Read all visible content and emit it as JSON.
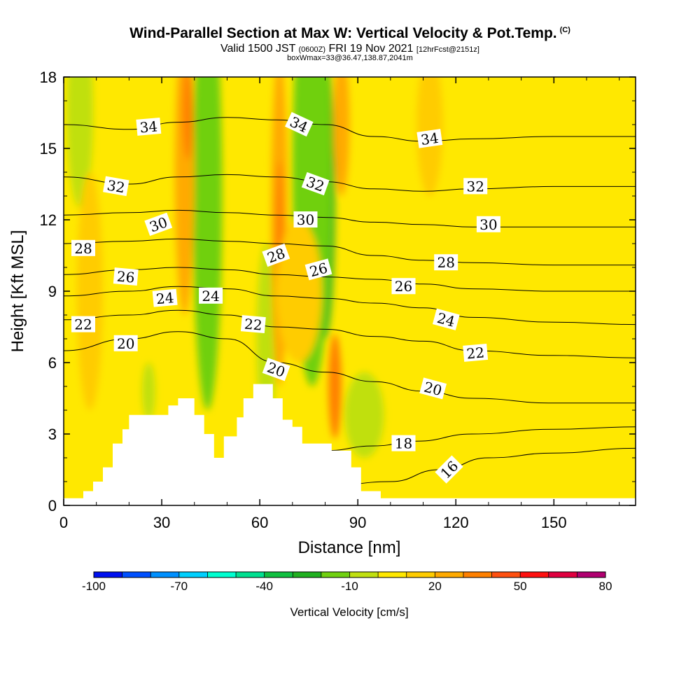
{
  "header": {
    "title": "Wind-Parallel Section at Max W: Vertical Velocity & Pot.Temp.",
    "copyright": "(C)",
    "valid_prefix": "Valid 1500 JST",
    "valid_utc": "(0600Z)",
    "valid_date": "FRI 19 Nov 2021",
    "forecast": "[12hrFcst@2151z]",
    "box_info": "boxWmax=33@36.47,138.87,2041m"
  },
  "chart_data": {
    "type": "heatmap",
    "xlabel": "Distance [nm]",
    "ylabel": "Height [Kft MSL]",
    "xlim": [
      0,
      175
    ],
    "ylim": [
      0,
      18
    ],
    "xticks": [
      0,
      30,
      60,
      90,
      120,
      150
    ],
    "yticks": [
      0,
      3,
      6,
      9,
      12,
      15,
      18
    ],
    "colorbar": {
      "title": "Vertical Velocity [cm/s]",
      "levels": [
        -100,
        -90,
        -80,
        -70,
        -60,
        -50,
        -40,
        -30,
        -20,
        -10,
        0,
        10,
        20,
        30,
        40,
        50,
        60,
        70,
        80
      ],
      "labels": [
        -100,
        -70,
        -40,
        -10,
        20,
        50,
        80
      ],
      "colors": [
        "#0010f0",
        "#0050ff",
        "#0090ff",
        "#00d0ff",
        "#00ffd0",
        "#00e090",
        "#10c040",
        "#20b020",
        "#70d010",
        "#c0e010",
        "#ffe800",
        "#ffcc00",
        "#ffaa00",
        "#ff8000",
        "#ff5010",
        "#ff1010",
        "#e00040",
        "#b00070",
        "#800080",
        "#5a0090"
      ]
    },
    "background_color": "#ffe800",
    "theta_contours": [
      {
        "label": "16",
        "points": [
          [
            80,
            0.8
          ],
          [
            100,
            1.0
          ],
          [
            115,
            1.5
          ],
          [
            130,
            2.0
          ],
          [
            150,
            2.2
          ],
          [
            175,
            2.4
          ]
        ]
      },
      {
        "label": "18",
        "points": [
          [
            80,
            2.3
          ],
          [
            95,
            2.5
          ],
          [
            108,
            2.7
          ],
          [
            125,
            3.0
          ],
          [
            150,
            3.2
          ],
          [
            175,
            3.3
          ]
        ]
      },
      {
        "label": "20",
        "points": [
          [
            0,
            6.5
          ],
          [
            20,
            7.0
          ],
          [
            35,
            7.3
          ],
          [
            50,
            7.0
          ],
          [
            65,
            6.0
          ],
          [
            80,
            5.6
          ],
          [
            95,
            5.2
          ],
          [
            110,
            4.8
          ],
          [
            125,
            4.5
          ],
          [
            150,
            4.3
          ],
          [
            175,
            4.3
          ]
        ]
      },
      {
        "label": "22",
        "points": [
          [
            0,
            7.8
          ],
          [
            20,
            8.0
          ],
          [
            35,
            8.2
          ],
          [
            50,
            8.0
          ],
          [
            65,
            7.5
          ],
          [
            80,
            7.4
          ],
          [
            95,
            7.1
          ],
          [
            110,
            6.9
          ],
          [
            125,
            6.5
          ],
          [
            150,
            6.3
          ],
          [
            175,
            6.2
          ]
        ]
      },
      {
        "label": "24",
        "points": [
          [
            0,
            8.8
          ],
          [
            20,
            9.0
          ],
          [
            35,
            9.2
          ],
          [
            50,
            9.1
          ],
          [
            65,
            8.8
          ],
          [
            80,
            8.7
          ],
          [
            95,
            8.5
          ],
          [
            110,
            8.3
          ],
          [
            125,
            7.9
          ],
          [
            150,
            7.7
          ],
          [
            175,
            7.6
          ]
        ]
      },
      {
        "label": "26",
        "points": [
          [
            0,
            9.7
          ],
          [
            20,
            9.9
          ],
          [
            35,
            10.0
          ],
          [
            50,
            9.9
          ],
          [
            65,
            9.7
          ],
          [
            80,
            9.6
          ],
          [
            95,
            9.5
          ],
          [
            110,
            9.3
          ],
          [
            125,
            9.1
          ],
          [
            150,
            9.0
          ],
          [
            175,
            9.0
          ]
        ]
      },
      {
        "label": "28",
        "points": [
          [
            0,
            11.0
          ],
          [
            20,
            11.1
          ],
          [
            35,
            11.2
          ],
          [
            50,
            11.1
          ],
          [
            65,
            11.0
          ],
          [
            80,
            10.9
          ],
          [
            95,
            10.5
          ],
          [
            110,
            10.3
          ],
          [
            125,
            10.2
          ],
          [
            150,
            10.1
          ],
          [
            175,
            10.1
          ]
        ]
      },
      {
        "label": "30",
        "points": [
          [
            0,
            12.2
          ],
          [
            20,
            12.3
          ],
          [
            35,
            12.4
          ],
          [
            50,
            12.3
          ],
          [
            65,
            12.2
          ],
          [
            80,
            12.1
          ],
          [
            95,
            11.9
          ],
          [
            110,
            11.8
          ],
          [
            125,
            11.7
          ],
          [
            150,
            11.7
          ],
          [
            175,
            11.7
          ]
        ]
      },
      {
        "label": "32",
        "points": [
          [
            0,
            13.8
          ],
          [
            20,
            13.5
          ],
          [
            35,
            13.8
          ],
          [
            50,
            13.9
          ],
          [
            65,
            13.8
          ],
          [
            80,
            13.6
          ],
          [
            95,
            13.3
          ],
          [
            110,
            13.2
          ],
          [
            125,
            13.3
          ],
          [
            150,
            13.4
          ],
          [
            175,
            13.4
          ]
        ]
      },
      {
        "label": "34",
        "points": [
          [
            0,
            16.0
          ],
          [
            20,
            15.8
          ],
          [
            35,
            16.1
          ],
          [
            50,
            16.3
          ],
          [
            65,
            16.2
          ],
          [
            80,
            16.0
          ],
          [
            95,
            15.5
          ],
          [
            110,
            15.3
          ],
          [
            125,
            15.4
          ],
          [
            150,
            15.5
          ],
          [
            175,
            15.5
          ]
        ]
      }
    ],
    "contour_labels": [
      {
        "text": "34",
        "x": 26,
        "y": 15.9,
        "rot": -5
      },
      {
        "text": "34",
        "x": 72,
        "y": 16.0,
        "rot": 25
      },
      {
        "text": "34",
        "x": 112,
        "y": 15.4,
        "rot": -8
      },
      {
        "text": "32",
        "x": 16,
        "y": 13.4,
        "rot": 10
      },
      {
        "text": "32",
        "x": 77,
        "y": 13.5,
        "rot": 20
      },
      {
        "text": "32",
        "x": 126,
        "y": 13.4,
        "rot": 0
      },
      {
        "text": "30",
        "x": 29,
        "y": 11.8,
        "rot": -20
      },
      {
        "text": "30",
        "x": 74,
        "y": 12.0,
        "rot": 0
      },
      {
        "text": "30",
        "x": 130,
        "y": 11.8,
        "rot": 0
      },
      {
        "text": "28",
        "x": 6,
        "y": 10.8,
        "rot": 0
      },
      {
        "text": "28",
        "x": 65,
        "y": 10.5,
        "rot": -20
      },
      {
        "text": "28",
        "x": 117,
        "y": 10.2,
        "rot": 0
      },
      {
        "text": "26",
        "x": 19,
        "y": 9.6,
        "rot": 5
      },
      {
        "text": "26",
        "x": 78,
        "y": 9.9,
        "rot": -15
      },
      {
        "text": "26",
        "x": 104,
        "y": 9.2,
        "rot": 0
      },
      {
        "text": "24",
        "x": 31,
        "y": 8.7,
        "rot": -5
      },
      {
        "text": "24",
        "x": 45,
        "y": 8.8,
        "rot": 0
      },
      {
        "text": "24",
        "x": 117,
        "y": 7.8,
        "rot": 15
      },
      {
        "text": "22",
        "x": 6,
        "y": 7.6,
        "rot": 0
      },
      {
        "text": "22",
        "x": 58,
        "y": 7.6,
        "rot": 5
      },
      {
        "text": "22",
        "x": 126,
        "y": 6.4,
        "rot": -5
      },
      {
        "text": "20",
        "x": 19,
        "y": 6.8,
        "rot": 0
      },
      {
        "text": "20",
        "x": 65,
        "y": 5.7,
        "rot": 20
      },
      {
        "text": "20",
        "x": 113,
        "y": 4.9,
        "rot": 15
      },
      {
        "text": "18",
        "x": 104,
        "y": 2.6,
        "rot": 0
      },
      {
        "text": "16",
        "x": 118,
        "y": 1.5,
        "rot": -45
      }
    ],
    "velocity_features": [
      {
        "value": -30,
        "x": 45,
        "y": 15.0,
        "w": 2.5,
        "h": 4.5
      },
      {
        "value": -20,
        "x": 44,
        "y": 13.0,
        "w": 4.5,
        "h": 9.0
      },
      {
        "value": -30,
        "x": 80,
        "y": 13.0,
        "w": 3.0,
        "h": 6.0
      },
      {
        "value": -20,
        "x": 76,
        "y": 14.0,
        "w": 6.0,
        "h": 9.0
      },
      {
        "value": -10,
        "x": 5,
        "y": 16.5,
        "w": 4.0,
        "h": 4.0
      },
      {
        "value": -10,
        "x": 92,
        "y": 3.8,
        "w": 6.0,
        "h": 1.8
      },
      {
        "value": -10,
        "x": 62,
        "y": 7.0,
        "w": 3.0,
        "h": 4.0
      },
      {
        "value": -10,
        "x": 26,
        "y": 4.8,
        "w": 2.0,
        "h": 1.2
      },
      {
        "value": 20,
        "x": 37,
        "y": 14.0,
        "w": 3.0,
        "h": 6.0
      },
      {
        "value": 30,
        "x": 38,
        "y": 16.5,
        "w": 1.6,
        "h": 2.0
      },
      {
        "value": 20,
        "x": 66,
        "y": 12.0,
        "w": 2.5,
        "h": 7.0
      },
      {
        "value": 30,
        "x": 66,
        "y": 11.0,
        "w": 1.2,
        "h": 3.5
      },
      {
        "value": 20,
        "x": 85,
        "y": 16.0,
        "w": 2.5,
        "h": 3.0
      },
      {
        "value": 30,
        "x": 83,
        "y": 5.0,
        "w": 2.0,
        "h": 2.2
      },
      {
        "value": 10,
        "x": 72,
        "y": 9.0,
        "w": 7.0,
        "h": 3.0
      },
      {
        "value": 10,
        "x": 112,
        "y": 16.0,
        "w": 4.0,
        "h": 3.0
      },
      {
        "value": 10,
        "x": 8,
        "y": 9.0,
        "w": 4.0,
        "h": 5.0
      }
    ],
    "terrain": [
      [
        0,
        0.3
      ],
      [
        6,
        0.3
      ],
      [
        6,
        0.6
      ],
      [
        9,
        0.6
      ],
      [
        9,
        1.0
      ],
      [
        12,
        1.0
      ],
      [
        12,
        1.6
      ],
      [
        15,
        1.6
      ],
      [
        15,
        2.6
      ],
      [
        18,
        2.6
      ],
      [
        18,
        3.2
      ],
      [
        20,
        3.2
      ],
      [
        20,
        3.8
      ],
      [
        32,
        3.8
      ],
      [
        32,
        4.2
      ],
      [
        35,
        4.2
      ],
      [
        35,
        4.5
      ],
      [
        40,
        4.5
      ],
      [
        40,
        3.8
      ],
      [
        43,
        3.8
      ],
      [
        43,
        3.0
      ],
      [
        46,
        3.0
      ],
      [
        46,
        2.0
      ],
      [
        49,
        2.0
      ],
      [
        49,
        2.9
      ],
      [
        53,
        2.9
      ],
      [
        53,
        3.7
      ],
      [
        55,
        3.7
      ],
      [
        55,
        4.5
      ],
      [
        58,
        4.5
      ],
      [
        58,
        5.1
      ],
      [
        64,
        5.1
      ],
      [
        64,
        4.5
      ],
      [
        67,
        4.5
      ],
      [
        67,
        3.6
      ],
      [
        70,
        3.6
      ],
      [
        70,
        3.3
      ],
      [
        73,
        3.3
      ],
      [
        73,
        2.6
      ],
      [
        76,
        2.6
      ],
      [
        76,
        2.6
      ],
      [
        82,
        2.6
      ],
      [
        82,
        2.3
      ],
      [
        88,
        2.3
      ],
      [
        88,
        1.6
      ],
      [
        91,
        1.6
      ],
      [
        91,
        0.6
      ],
      [
        97,
        0.6
      ],
      [
        97,
        0.3
      ],
      [
        175,
        0.3
      ],
      [
        175,
        0
      ],
      [
        0,
        0
      ]
    ]
  }
}
